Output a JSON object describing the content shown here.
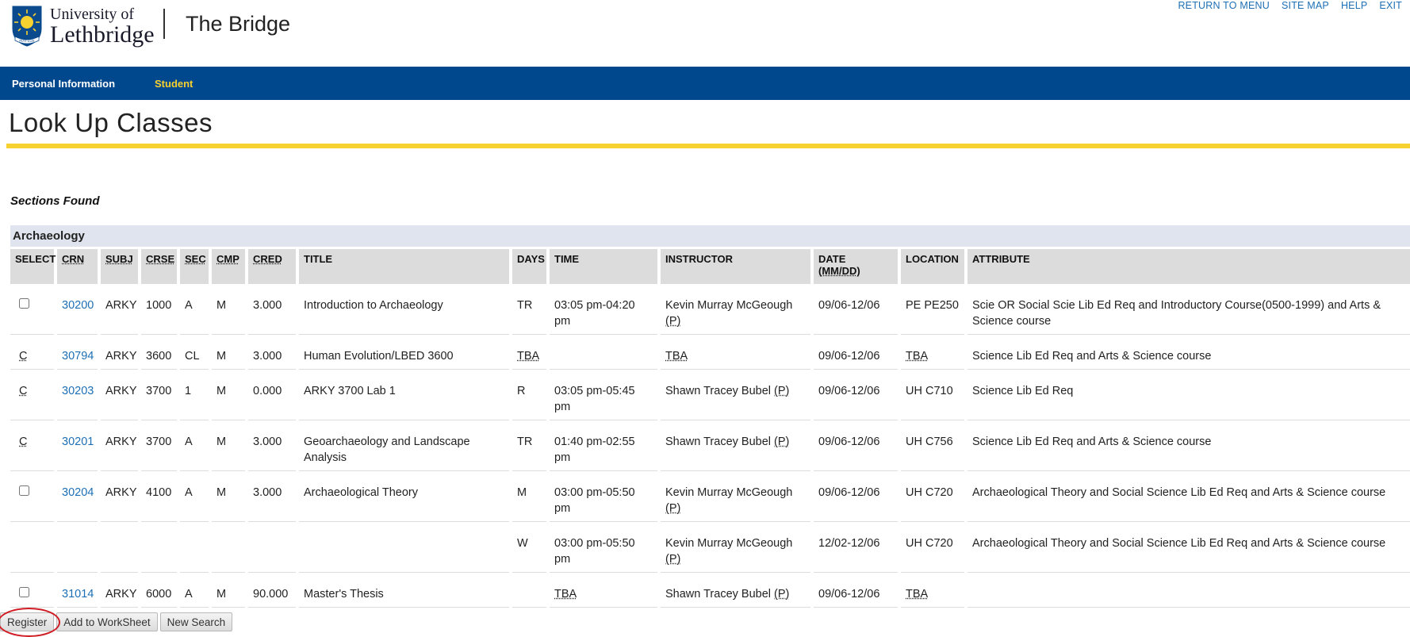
{
  "header": {
    "university_line1": "University of",
    "university_line2": "Lethbridge",
    "crest_motto": "FIAT LUX",
    "app_title": "The Bridge",
    "toplinks": [
      "RETURN TO MENU",
      "SITE MAP",
      "HELP",
      "EXIT"
    ]
  },
  "nav": {
    "items": [
      {
        "label": "Personal Information",
        "active": false
      },
      {
        "label": "Student",
        "active": true
      }
    ]
  },
  "page": {
    "title": "Look Up Classes",
    "sections_found": "Sections Found"
  },
  "table": {
    "subject": "Archaeology",
    "headers": [
      "SELECT",
      "CRN",
      "SUBJ",
      "CRSE",
      "SEC",
      "CMP",
      "CRED",
      "TITLE",
      "DAYS",
      "TIME",
      "INSTRUCTOR",
      "DATE (MM/DD)",
      "LOCATION",
      "ATTRIBUTE"
    ],
    "rows": [
      {
        "select": "checkbox",
        "crn": "30200",
        "subj": "ARKY",
        "crse": "1000",
        "sec": "A",
        "cmp": "M",
        "cred": "3.000",
        "title": "Introduction to Archaeology",
        "days": "TR",
        "time": "03:05 pm-04:20 pm",
        "instructor": "Kevin Murray McGeough",
        "primary": "(P)",
        "date": "09/06-12/06",
        "location": "PE PE250",
        "attribute": "Scie OR Social Scie Lib Ed Req and Introductory Course(0500-1999) and Arts & Science course"
      },
      {
        "select": "C",
        "crn": "30794",
        "subj": "ARKY",
        "crse": "3600",
        "sec": "CL",
        "cmp": "M",
        "cred": "3.000",
        "title": "Human Evolution/LBED 3600",
        "days": "TBA",
        "time": "",
        "instructor": "TBA",
        "primary": "",
        "date": "09/06-12/06",
        "location": "TBA",
        "attribute": "Science Lib Ed Req and Arts & Science course"
      },
      {
        "select": "C",
        "crn": "30203",
        "subj": "ARKY",
        "crse": "3700",
        "sec": "1",
        "cmp": "M",
        "cred": "0.000",
        "title": "ARKY 3700 Lab 1",
        "days": "R",
        "time": "03:05 pm-05:45 pm",
        "instructor": "Shawn Tracey Bubel",
        "primary": "(P)",
        "date": "09/06-12/06",
        "location": "UH C710",
        "attribute": "Science Lib Ed Req"
      },
      {
        "select": "C",
        "crn": "30201",
        "subj": "ARKY",
        "crse": "3700",
        "sec": "A",
        "cmp": "M",
        "cred": "3.000",
        "title": "Geoarchaeology and Landscape Analysis",
        "days": "TR",
        "time": "01:40 pm-02:55 pm",
        "instructor": "Shawn Tracey Bubel",
        "primary": "(P)",
        "date": "09/06-12/06",
        "location": "UH C756",
        "attribute": "Science Lib Ed Req and Arts & Science course"
      },
      {
        "select": "checkbox",
        "crn": "30204",
        "subj": "ARKY",
        "crse": "4100",
        "sec": "A",
        "cmp": "M",
        "cred": "3.000",
        "title": "Archaeological Theory",
        "days": "M",
        "time": "03:00 pm-05:50 pm",
        "instructor": "Kevin Murray McGeough",
        "primary": "(P)",
        "date": "09/06-12/06",
        "location": "UH C720",
        "attribute": "Archaeological Theory and Social Science Lib Ed Req and Arts & Science course"
      },
      {
        "select": "",
        "crn": "",
        "subj": "",
        "crse": "",
        "sec": "",
        "cmp": "",
        "cred": "",
        "title": "",
        "days": "W",
        "time": "03:00 pm-05:50 pm",
        "instructor": "Kevin Murray McGeough",
        "primary": "(P)",
        "date": "12/02-12/06",
        "location": "UH C720",
        "attribute": "Archaeological Theory and Social Science Lib Ed Req and Arts & Science course"
      },
      {
        "select": "checkbox",
        "crn": "31014",
        "subj": "ARKY",
        "crse": "6000",
        "sec": "A",
        "cmp": "M",
        "cred": "90.000",
        "title": "Master's Thesis",
        "days": "",
        "time": "TBA",
        "instructor": "Shawn Tracey Bubel",
        "primary": "(P)",
        "date": "09/06-12/06",
        "location": "TBA",
        "attribute": ""
      }
    ]
  },
  "buttons": {
    "register": "Register",
    "add_to_worksheet": "Add to WorkSheet",
    "new_search": "New Search"
  },
  "colors": {
    "nav_bg": "#00488e",
    "accent_yellow": "#f6d12f",
    "link_blue": "#1e6fb4",
    "highlight_ring": "#d01c24"
  }
}
